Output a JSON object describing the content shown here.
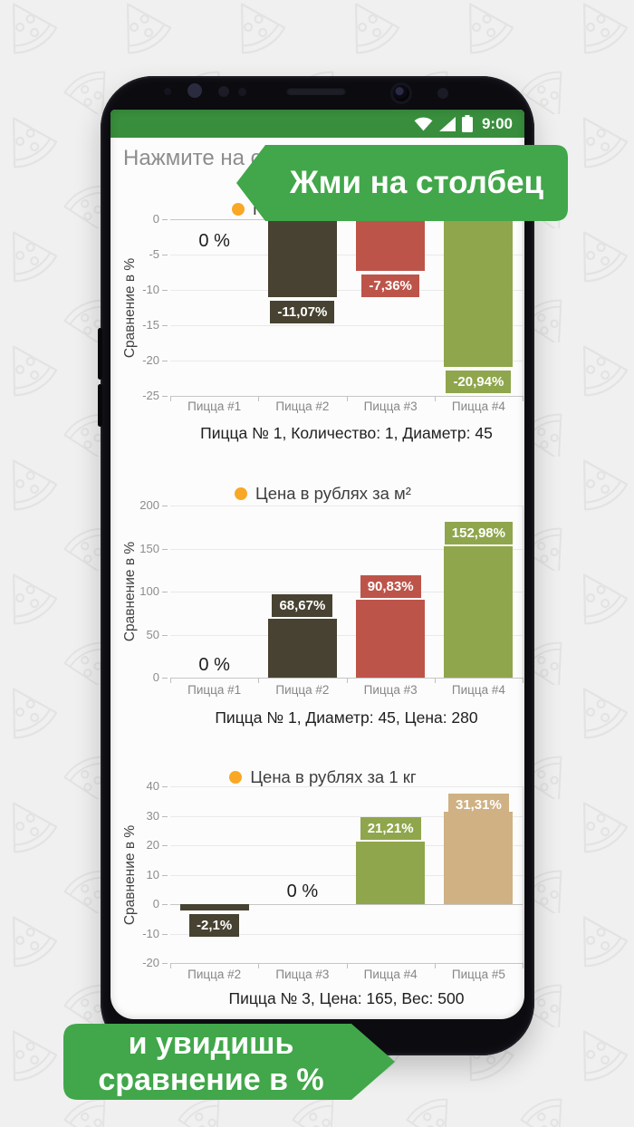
{
  "colors": {
    "status_bar_green": "#388e3c",
    "banner_green": "#41a74a",
    "legend_dot": "#f9a825",
    "bar_olive": "#474231",
    "bar_red": "#bd544a",
    "bar_green": "#8fa64c",
    "bar_tan": "#cfb183",
    "page_background": "#f0f0f0"
  },
  "status_bar": {
    "time": "9:00",
    "icons": [
      "wifi-icon",
      "cell-signal-icon",
      "battery-icon"
    ]
  },
  "app": {
    "header": "Нажмите на ст"
  },
  "banners": {
    "top": "Жми на столбец",
    "bottom_line1": "и увидишь",
    "bottom_line2": "сравнение в %"
  },
  "chart_data": [
    {
      "type": "bar",
      "title": "Пло",
      "legend_dot_color": "#f9a825",
      "ylabel": "Сравнение в %",
      "ylim": [
        -25,
        0
      ],
      "yticks": [
        0,
        -5,
        -10,
        -15,
        -20,
        -25
      ],
      "grid": true,
      "categories": [
        "Пицца #1",
        "Пицца #2",
        "Пицца #3",
        "Пицца #4"
      ],
      "values": [
        0,
        -11.07,
        -7.36,
        -20.94
      ],
      "value_labels": [
        "0 %",
        "-11,07%",
        "-7,36%",
        "-20,94%"
      ],
      "bar_colors": [
        null,
        "#474231",
        "#bd544a",
        "#8fa64c"
      ],
      "caption": "Пицца № 1, Количество: 1, Диаметр: 45"
    },
    {
      "type": "bar",
      "title": "Цена в рублях за м²",
      "legend_dot_color": "#f9a825",
      "ylabel": "Сравнение в %",
      "ylim": [
        0,
        200
      ],
      "yticks": [
        200,
        150,
        100,
        50,
        0
      ],
      "grid": true,
      "categories": [
        "Пицца #1",
        "Пицца #2",
        "Пицца #3",
        "Пицца #4"
      ],
      "values": [
        0,
        68.67,
        90.83,
        152.98
      ],
      "value_labels": [
        "0 %",
        "68,67%",
        "90,83%",
        "152,98%"
      ],
      "bar_colors": [
        null,
        "#474231",
        "#bd544a",
        "#8fa64c"
      ],
      "caption": "Пицца № 1, Диаметр: 45, Цена: 280"
    },
    {
      "type": "bar",
      "title": "Цена в рублях за 1 кг",
      "legend_dot_color": "#f9a825",
      "ylabel": "Сравнение в %",
      "ylim": [
        -20,
        40
      ],
      "yticks": [
        40,
        30,
        20,
        10,
        0,
        -10,
        -20
      ],
      "grid": true,
      "categories": [
        "Пицца #2",
        "Пицца #3",
        "Пицца #4",
        "Пицца #5"
      ],
      "values": [
        -2.1,
        0,
        21.21,
        31.31
      ],
      "value_labels": [
        "-2,1%",
        "0 %",
        "21,21%",
        "31,31%"
      ],
      "bar_colors": [
        "#474231",
        null,
        "#8fa64c",
        "#cfb183"
      ],
      "caption": "Пицца № 3, Цена: 165, Вес: 500"
    }
  ]
}
